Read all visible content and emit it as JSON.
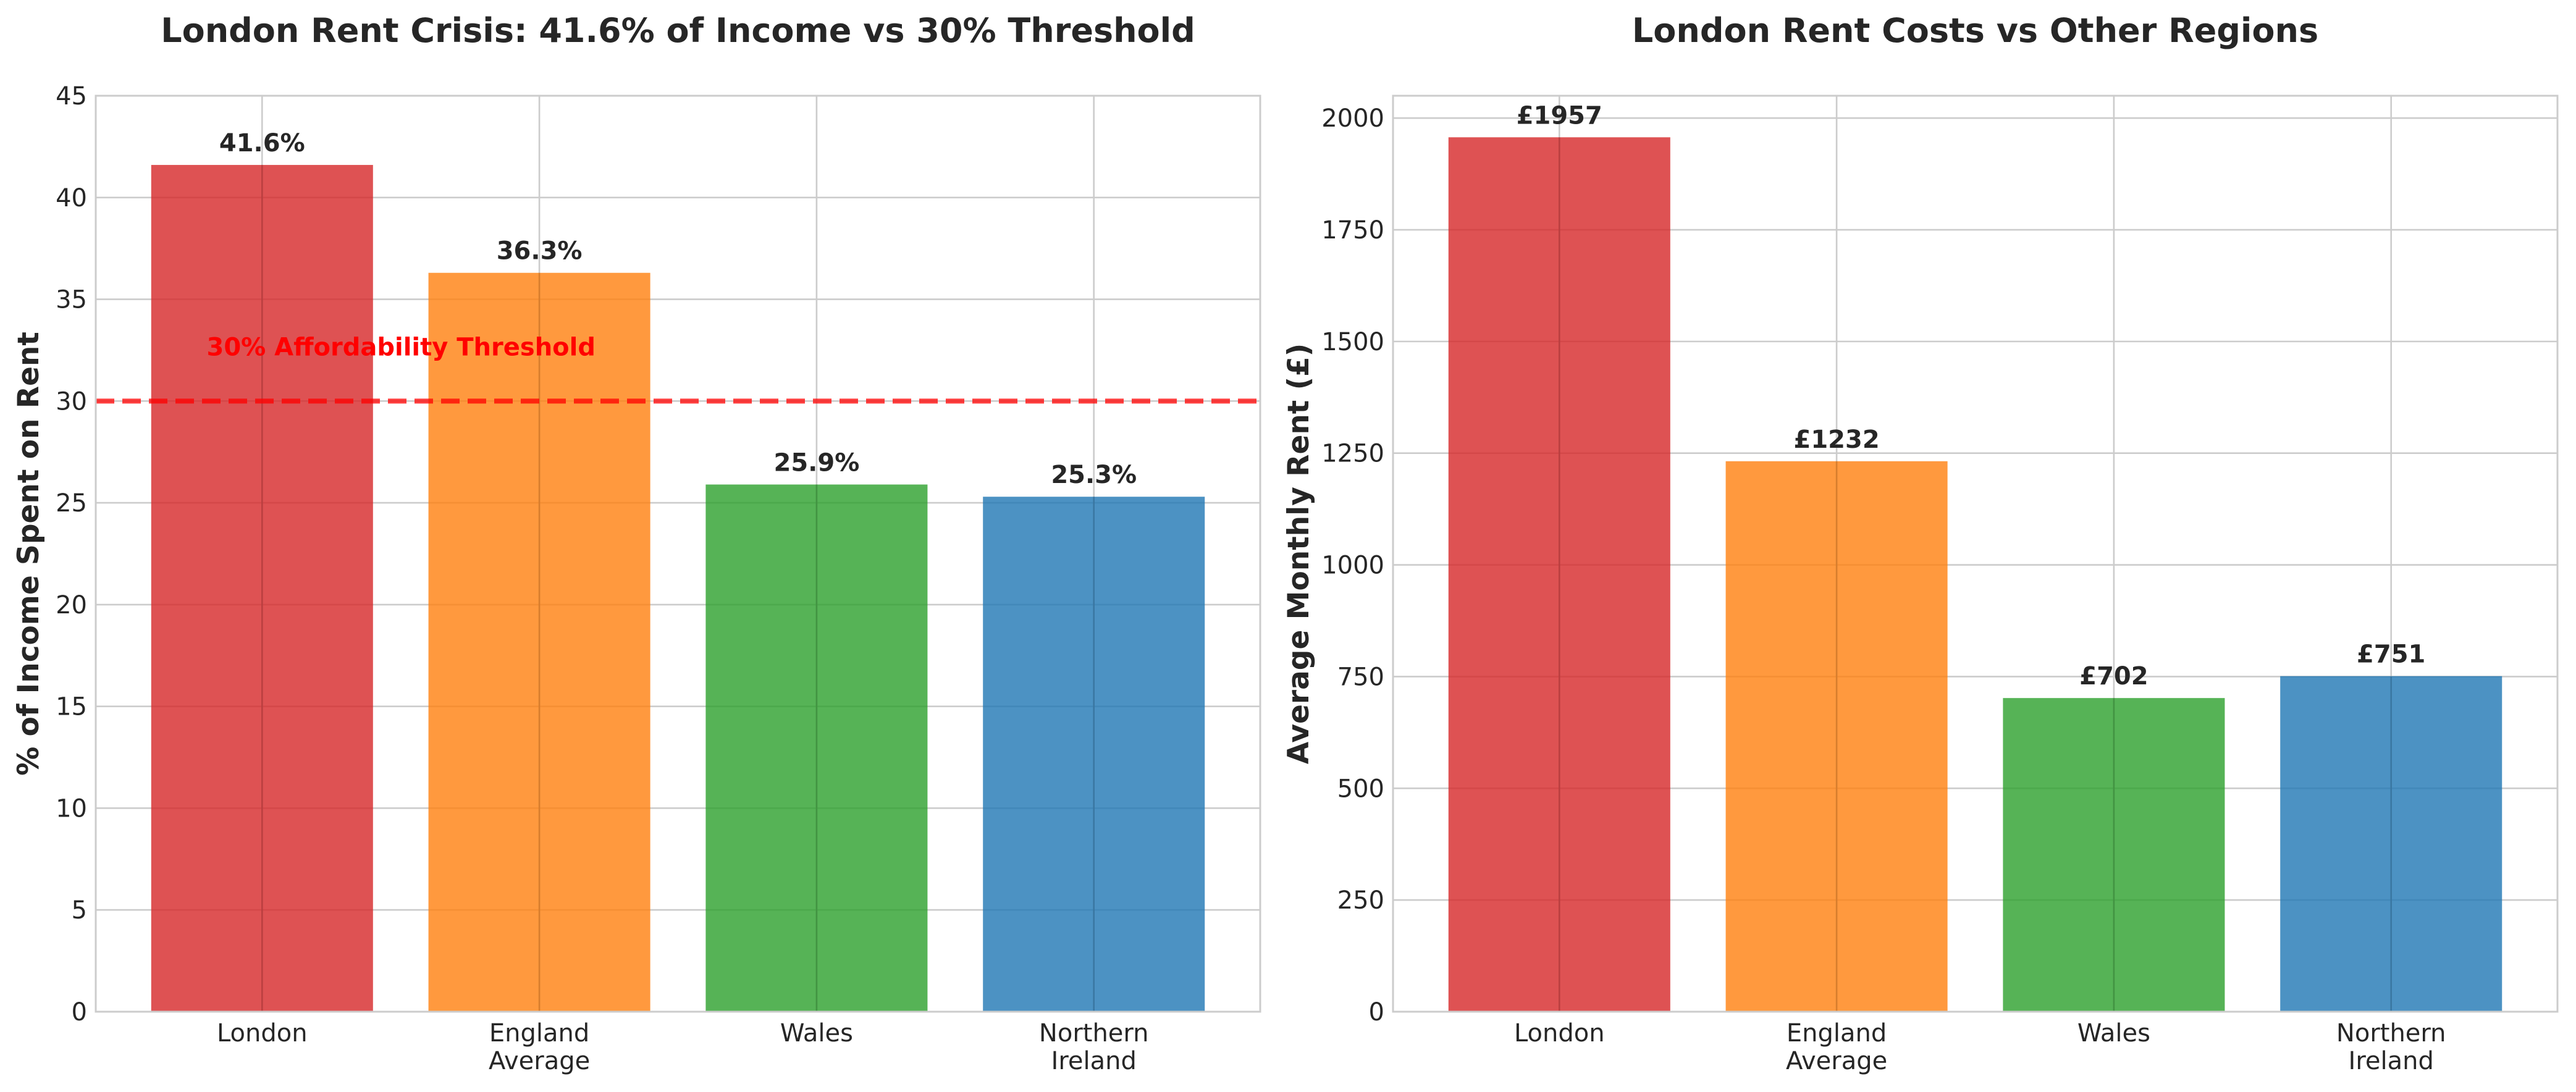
{
  "chart_data": [
    {
      "type": "bar",
      "title": "London Rent Crisis: 41.6% of Income vs 30% Threshold",
      "xlabel": "",
      "ylabel": "% of Income Spent on Rent",
      "categories": [
        [
          "London"
        ],
        [
          "England",
          "Average"
        ],
        [
          "Wales"
        ],
        [
          "Northern",
          "Ireland"
        ]
      ],
      "values": [
        41.6,
        36.3,
        25.9,
        25.3
      ],
      "value_labels": [
        "41.6%",
        "36.3%",
        "25.9%",
        "25.3%"
      ],
      "colors": [
        "#d62728",
        "#ff7f0e",
        "#2ca02c",
        "#1f77b4"
      ],
      "ylim": [
        0,
        45
      ],
      "yticks": [
        0,
        5,
        10,
        15,
        20,
        25,
        30,
        35,
        40,
        45
      ],
      "grid": true,
      "threshold": {
        "value": 30,
        "label": "30% Affordability Threshold",
        "color": "#ff0000",
        "style": "dashed"
      }
    },
    {
      "type": "bar",
      "title": "London Rent Costs vs Other Regions",
      "xlabel": "",
      "ylabel": "Average Monthly Rent (£)",
      "categories": [
        [
          "London"
        ],
        [
          "England",
          "Average"
        ],
        [
          "Wales"
        ],
        [
          "Northern",
          "Ireland"
        ]
      ],
      "values": [
        1957,
        1232,
        702,
        751
      ],
      "value_labels": [
        "£1957",
        "£1232",
        "£702",
        "£751"
      ],
      "colors": [
        "#d62728",
        "#ff7f0e",
        "#2ca02c",
        "#1f77b4"
      ],
      "ylim": [
        0,
        2050
      ],
      "yticks": [
        0,
        250,
        500,
        750,
        1000,
        1250,
        1500,
        1750,
        2000
      ],
      "grid": true
    }
  ]
}
